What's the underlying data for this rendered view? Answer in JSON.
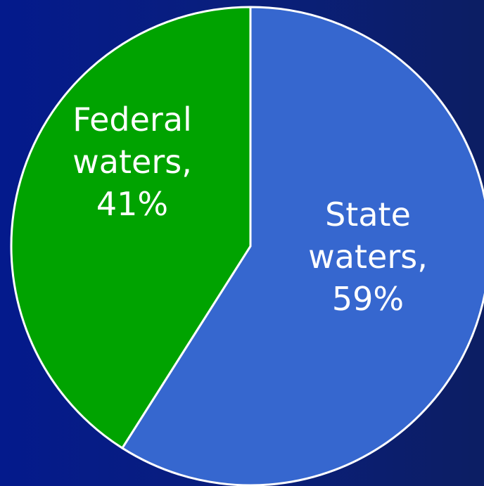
{
  "chart_data": {
    "type": "pie",
    "title": "",
    "slices": [
      {
        "label_lines": [
          "State",
          "waters,",
          "59%"
        ],
        "value": 59,
        "color": "#3667cf"
      },
      {
        "label_lines": [
          "Federal",
          "waters,",
          "41%"
        ],
        "value": 41,
        "color": "#00a300"
      }
    ],
    "start_angle": "top",
    "direction": "clockwise",
    "border_color": "#ffffff"
  }
}
